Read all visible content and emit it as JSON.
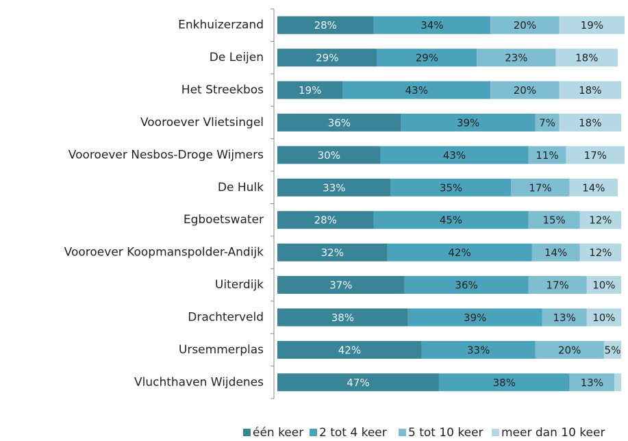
{
  "chart_data": {
    "type": "stacked_barh",
    "categories": [
      "Enkhuizerzand",
      "De Leijen",
      "Het Streekbos",
      "Vooroever Vlietsingel",
      "Vooroever Nesbos-Droge Wijmers",
      "De Hulk",
      "Egboetswater",
      "Vooroever Koopmanspolder-Andijk",
      "Uiterdijk",
      "Drachterveld",
      "Ursemmerplas",
      "Vluchthaven Wijdenes"
    ],
    "series": [
      {
        "name": "één keer",
        "color": "#3a8497",
        "values": [
          28,
          29,
          19,
          36,
          30,
          33,
          28,
          32,
          37,
          38,
          42,
          47
        ],
        "value_labels": [
          "28%",
          "29%",
          "19%",
          "36%",
          "30%",
          "33%",
          "28%",
          "32%",
          "37%",
          "38%",
          "42%",
          "47%"
        ]
      },
      {
        "name": "2 tot 4 keer",
        "color": "#4aa3bb",
        "values": [
          34,
          29,
          43,
          39,
          43,
          35,
          45,
          42,
          36,
          39,
          33,
          38
        ],
        "value_labels": [
          "34%",
          "29%",
          "43%",
          "39%",
          "43%",
          "35%",
          "45%",
          "42%",
          "36%",
          "39%",
          "33%",
          "38%"
        ]
      },
      {
        "name": "5 tot 10 keer",
        "color": "#7fbdd0",
        "values": [
          20,
          23,
          20,
          7,
          11,
          17,
          15,
          14,
          17,
          13,
          20,
          13
        ],
        "value_labels": [
          "20%",
          "23%",
          "20%",
          "7%",
          "11%",
          "17%",
          "15%",
          "14%",
          "17%",
          "13%",
          "20%",
          "13%"
        ]
      },
      {
        "name": "meer dan 10 keer",
        "color": "#b5d9e4",
        "values": [
          19,
          18,
          18,
          18,
          17,
          14,
          12,
          12,
          10,
          10,
          5,
          2
        ],
        "value_labels": [
          "19%",
          "18%",
          "18%",
          "18%",
          "17%",
          "14%",
          "12%",
          "12%",
          "10%",
          "10%",
          "5%",
          null
        ]
      }
    ],
    "legend": "bottom"
  }
}
